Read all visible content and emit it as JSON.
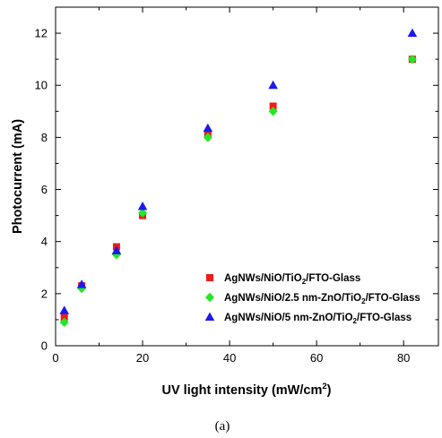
{
  "chart_data": {
    "type": "scatter",
    "xlabel_main": "UV light intensity (mW/cm",
    "xlabel_sup": "2",
    "xlabel_end": ")",
    "ylabel": "Photocurrent (mA)",
    "xlim": [
      0,
      88
    ],
    "ylim": [
      0,
      13
    ],
    "xticks": [
      0,
      20,
      40,
      60,
      80
    ],
    "yticks": [
      0,
      2,
      4,
      6,
      8,
      10,
      12
    ],
    "grid": false,
    "legend_position": "bottom-right",
    "caption": "(a)",
    "series": [
      {
        "name": "AgNWs/NiO/TiO2/FTO-Glass",
        "label_parts": [
          "AgNWs/NiO/TiO",
          "2",
          "/FTO-Glass"
        ],
        "marker": "square",
        "color": "#ee1c1c",
        "x": [
          2,
          6,
          14,
          20,
          35,
          50,
          82
        ],
        "y": [
          1.1,
          2.3,
          3.8,
          5.0,
          8.1,
          9.2,
          11.0
        ]
      },
      {
        "name": "AgNWs/NiO/2.5 nm-ZnO/TiO2/FTO-Glass",
        "label_parts": [
          "AgNWs/NiO/2.5 nm-ZnO/TiO",
          "2",
          "/FTO-Glass"
        ],
        "marker": "diamond",
        "color": "#22e822",
        "x": [
          2,
          6,
          14,
          20,
          35,
          50,
          82
        ],
        "y": [
          0.9,
          2.2,
          3.5,
          5.1,
          8.0,
          9.0,
          11.0
        ]
      },
      {
        "name": "AgNWs/NiO/5 nm-ZnO/TiO2/FTO-Glass",
        "label_parts": [
          "AgNWs/NiO/5 nm-ZnO/TiO",
          "2",
          "/FTO-Glass"
        ],
        "marker": "triangle",
        "color": "#1a1aee",
        "x": [
          2,
          6,
          14,
          20,
          35,
          50,
          82
        ],
        "y": [
          1.35,
          2.35,
          3.65,
          5.35,
          8.35,
          10.0,
          12.0
        ]
      }
    ]
  }
}
